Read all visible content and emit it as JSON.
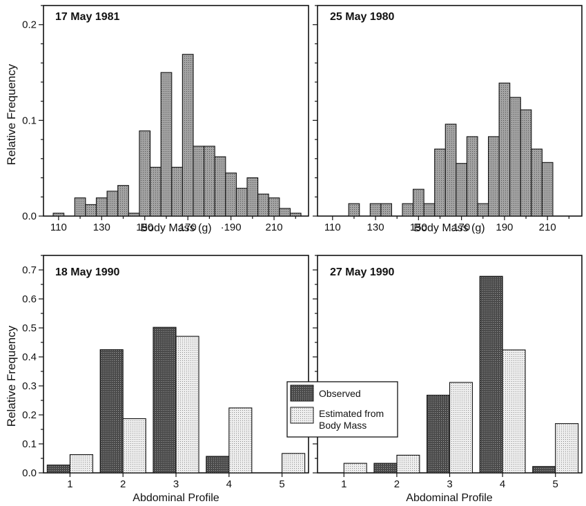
{
  "colors": {
    "histogram_fill": "#a3a3a3",
    "observed_fill": "#505050",
    "estimated_fill": "#e2e2e2",
    "axis": "#111111"
  },
  "chart_data": [
    {
      "type": "bar",
      "panel_label": "17 May 1981",
      "xlabel": "Body Mass (g)",
      "ylabel": "Relative Frequency",
      "x_ticks": [
        "110",
        "130",
        "150",
        "170",
        "·190",
        "210"
      ],
      "x_tick_values": [
        110,
        130,
        150,
        170,
        190,
        210
      ],
      "xlim": [
        103,
        226
      ],
      "y_ticks": [
        "0.0",
        "0.1",
        "0.2"
      ],
      "ylim": [
        0,
        0.22
      ],
      "bin_width": 5,
      "bins": [
        {
          "center": 110,
          "value": 0.003
        },
        {
          "center": 120,
          "value": 0.019
        },
        {
          "center": 125,
          "value": 0.012
        },
        {
          "center": 130,
          "value": 0.019
        },
        {
          "center": 135,
          "value": 0.026
        },
        {
          "center": 140,
          "value": 0.032
        },
        {
          "center": 145,
          "value": 0.003
        },
        {
          "center": 150,
          "value": 0.089
        },
        {
          "center": 155,
          "value": 0.051
        },
        {
          "center": 160,
          "value": 0.15
        },
        {
          "center": 165,
          "value": 0.051
        },
        {
          "center": 170,
          "value": 0.169
        },
        {
          "center": 175,
          "value": 0.073
        },
        {
          "center": 180,
          "value": 0.073
        },
        {
          "center": 185,
          "value": 0.062
        },
        {
          "center": 190,
          "value": 0.045
        },
        {
          "center": 195,
          "value": 0.029
        },
        {
          "center": 200,
          "value": 0.04
        },
        {
          "center": 205,
          "value": 0.023
        },
        {
          "center": 210,
          "value": 0.019
        },
        {
          "center": 215,
          "value": 0.008
        },
        {
          "center": 220,
          "value": 0.003
        }
      ]
    },
    {
      "type": "bar",
      "panel_label": "25 May 1980",
      "xlabel": "Body Mass (g)",
      "ylabel": "",
      "x_ticks": [
        "110",
        "130",
        "150",
        "170",
        "190",
        "210"
      ],
      "x_tick_values": [
        110,
        130,
        150,
        170,
        190,
        210
      ],
      "xlim": [
        103,
        226
      ],
      "y_ticks": [],
      "ylim": [
        0,
        0.22
      ],
      "bin_width": 5,
      "bins": [
        {
          "center": 120,
          "value": 0.013
        },
        {
          "center": 130,
          "value": 0.013
        },
        {
          "center": 135,
          "value": 0.013
        },
        {
          "center": 145,
          "value": 0.013
        },
        {
          "center": 150,
          "value": 0.028
        },
        {
          "center": 155,
          "value": 0.013
        },
        {
          "center": 160,
          "value": 0.07
        },
        {
          "center": 165,
          "value": 0.096
        },
        {
          "center": 170,
          "value": 0.055
        },
        {
          "center": 175,
          "value": 0.083
        },
        {
          "center": 180,
          "value": 0.013
        },
        {
          "center": 185,
          "value": 0.083
        },
        {
          "center": 190,
          "value": 0.139
        },
        {
          "center": 195,
          "value": 0.124
        },
        {
          "center": 200,
          "value": 0.111
        },
        {
          "center": 205,
          "value": 0.07
        },
        {
          "center": 210,
          "value": 0.056
        }
      ]
    },
    {
      "type": "bar",
      "panel_label": "18 May 1990",
      "xlabel": "Abdominal Profile",
      "ylabel": "Relative Frequency",
      "categories": [
        "1",
        "2",
        "3",
        "4",
        "5"
      ],
      "y_ticks": [
        "0.0",
        "0.1",
        "0.2",
        "0.3",
        "0.4",
        "0.5",
        "0.6",
        "0.7"
      ],
      "ylim": [
        0,
        0.75
      ],
      "series": [
        {
          "name": "Observed",
          "values": [
            0.027,
            0.425,
            0.502,
            0.057,
            0
          ]
        },
        {
          "name": "Estimated from Body Mass",
          "values": [
            0.063,
            0.187,
            0.471,
            0.224,
            0.067
          ]
        }
      ]
    },
    {
      "type": "bar",
      "panel_label": "27 May 1990",
      "xlabel": "Abdominal Profile",
      "ylabel": "",
      "categories": [
        "1",
        "2",
        "3",
        "4",
        "5"
      ],
      "y_ticks": [],
      "ylim": [
        0,
        0.75
      ],
      "series": [
        {
          "name": "Observed",
          "values": [
            0,
            0.033,
            0.268,
            0.678,
            0.022
          ]
        },
        {
          "name": "Estimated from Body Mass",
          "values": [
            0.033,
            0.061,
            0.312,
            0.424,
            0.17
          ]
        }
      ]
    }
  ],
  "legend": {
    "placement": "between bottom panels",
    "items": [
      {
        "label_lines": [
          "Observed"
        ]
      },
      {
        "label_lines": [
          "Estimated from",
          "Body Mass"
        ]
      }
    ]
  }
}
